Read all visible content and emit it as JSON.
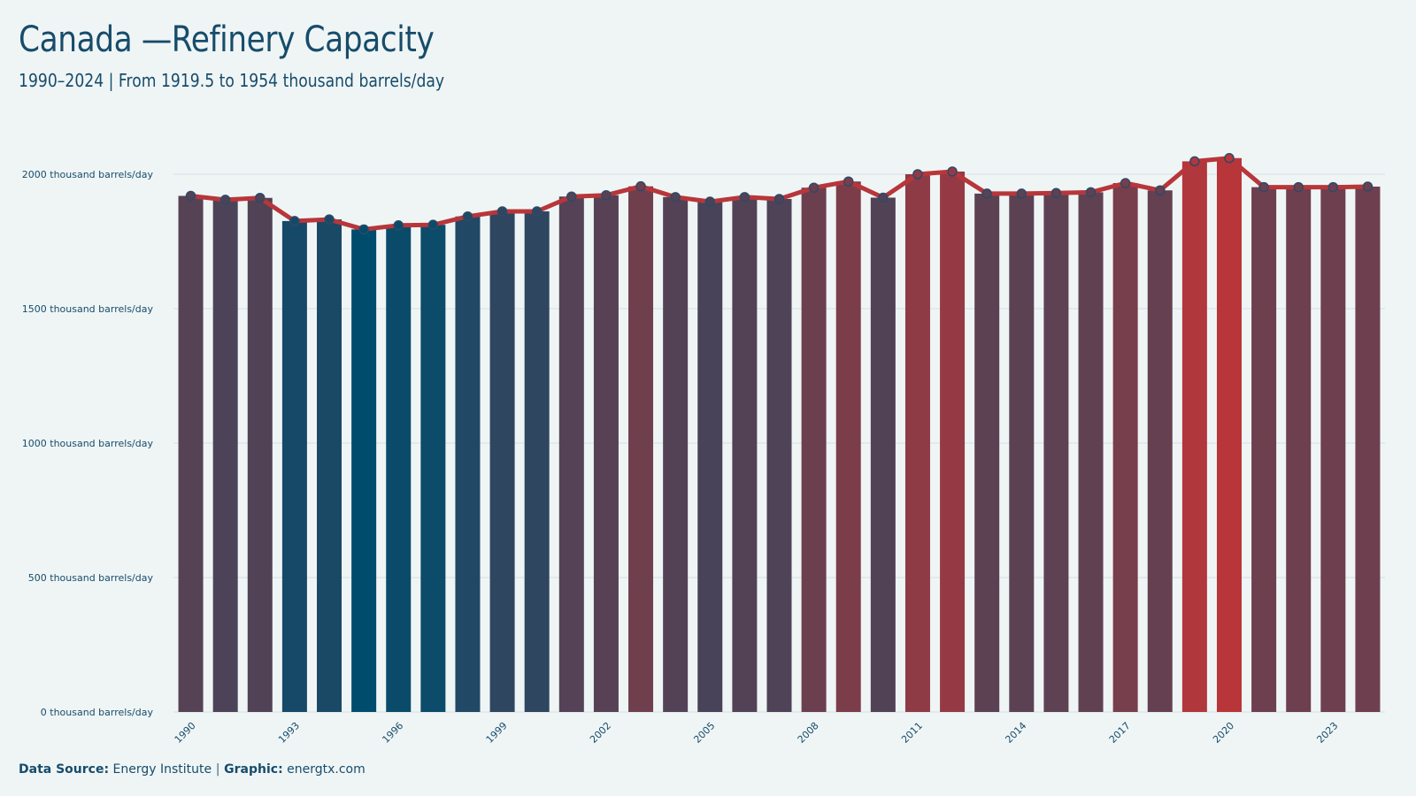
{
  "title": "Canada —Refinery Capacity",
  "subtitle": "1990–2024 | From 1919.5  to 1954  thousand barrels/day",
  "footer": {
    "source_label": "Data Source:",
    "source_value": "Energy Institute",
    "separator": "|",
    "graphic_label": "Graphic:",
    "graphic_value": "energtx.com"
  },
  "colors": {
    "background": "#eff5f5",
    "text": "#174c6b",
    "line": "#b8363a",
    "low": "#004c6d",
    "high": "#b8363a",
    "gridline": "#d3e0e6"
  },
  "chart_data": {
    "type": "bar",
    "title": "Canada —Refinery Capacity",
    "subtitle": "1990–2024 | From 1919.5  to 1954  thousand barrels/day",
    "xlabel": "",
    "ylabel": "",
    "ylim": [
      0,
      2000
    ],
    "y_ticks": [
      0,
      500,
      1000,
      1500,
      2000
    ],
    "y_tick_suffix": " thousand barrels/day",
    "x_tick_labels": [
      "1990",
      "1993",
      "1996",
      "1999",
      "2002",
      "2005",
      "2008",
      "2011",
      "2014",
      "2017",
      "2020",
      "2023"
    ],
    "grid": "horizontal",
    "overlay": "line with circle markers",
    "categories": [
      "1990",
      "1991",
      "1992",
      "1993",
      "1994",
      "1995",
      "1996",
      "1997",
      "1998",
      "1999",
      "2000",
      "2001",
      "2002",
      "2003",
      "2004",
      "2005",
      "2006",
      "2007",
      "2008",
      "2009",
      "2010",
      "2011",
      "2012",
      "2013",
      "2014",
      "2015",
      "2016",
      "2017",
      "2018",
      "2019",
      "2020",
      "2021",
      "2022",
      "2023",
      "2024"
    ],
    "values": [
      1919.5,
      1905,
      1912,
      1826,
      1832,
      1795,
      1810,
      1812,
      1843,
      1862,
      1862,
      1917,
      1922,
      1955,
      1915,
      1898,
      1915,
      1908,
      1950,
      1973,
      1913,
      2000,
      2010,
      1928,
      1928,
      1930,
      1933,
      1967,
      1940,
      2048,
      2060,
      1952,
      1952,
      1952,
      1954
    ]
  }
}
